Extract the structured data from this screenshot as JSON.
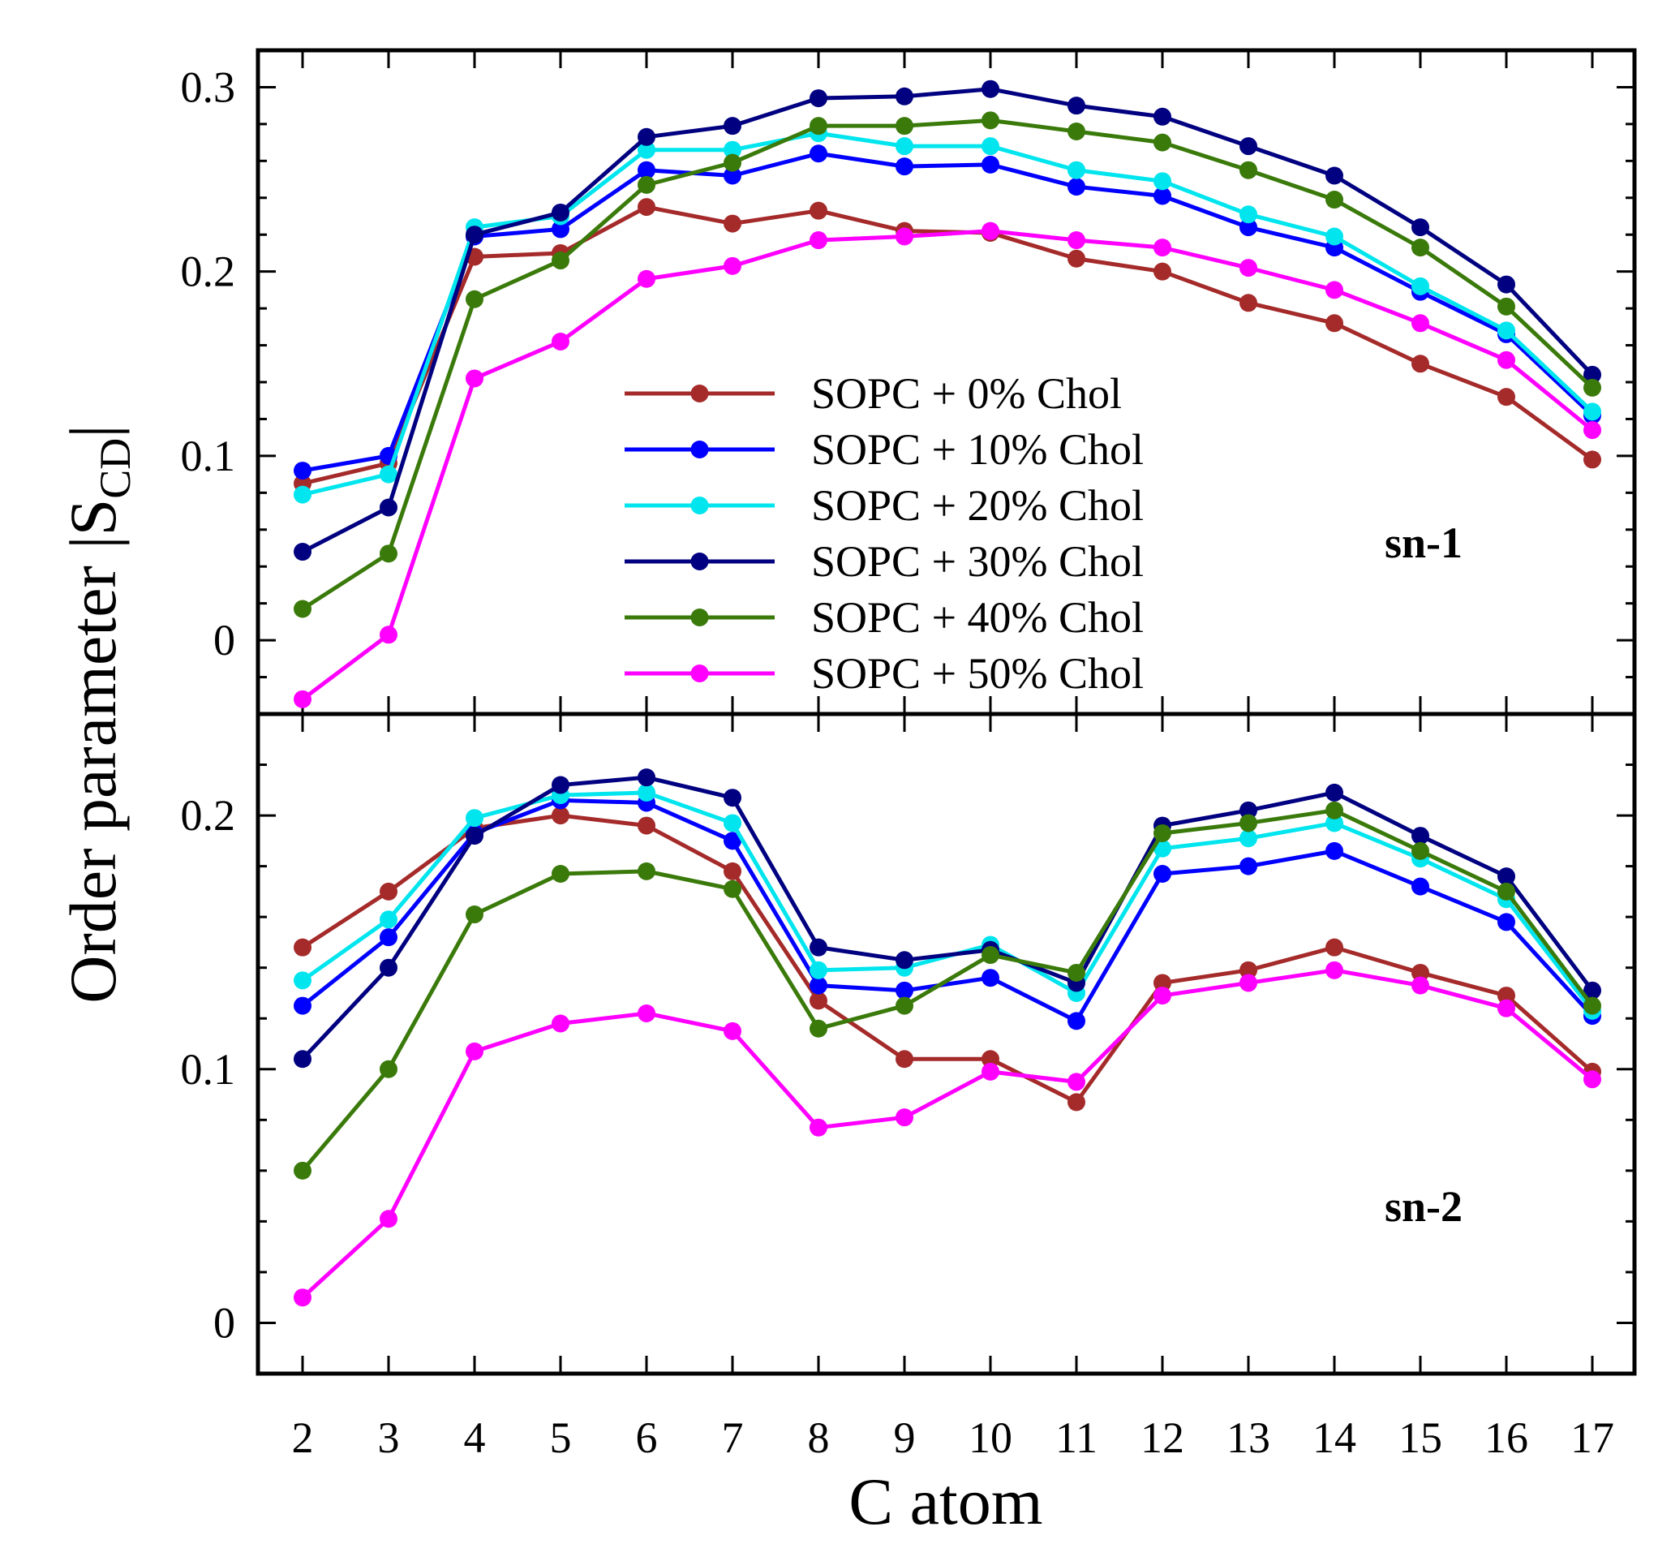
{
  "chart_data": {
    "type": "line",
    "x_categories": [
      2,
      3,
      4,
      5,
      6,
      7,
      8,
      9,
      10,
      11,
      12,
      13,
      14,
      15,
      16,
      17
    ],
    "xlabel": "C atom",
    "ylabel_main": "Order parameter |S",
    "ylabel_sub": "CD",
    "ylabel_close": "|",
    "legend_position": "center",
    "series": [
      {
        "name": "SOPC + 0% Chol",
        "color": "#a52a2a"
      },
      {
        "name": "SOPC + 10% Chol",
        "color": "#0000ff"
      },
      {
        "name": "SOPC + 20% Chol",
        "color": "#00e5ee"
      },
      {
        "name": "SOPC + 30% Chol",
        "color": "#000080"
      },
      {
        "name": "SOPC + 40% Chol",
        "color": "#3a7a0a"
      },
      {
        "name": "SOPC + 50% Chol",
        "color": "#ff00ff"
      }
    ],
    "panels": [
      {
        "label": "sn-1",
        "ylim": [
          -0.04,
          0.32
        ],
        "yticks": [
          0,
          0.1,
          0.2,
          0.3
        ],
        "ytick_labels": [
          "0",
          "0.1",
          "0.2",
          "0.3"
        ],
        "values": [
          [
            0.085,
            0.096,
            0.208,
            0.21,
            0.235,
            0.226,
            0.233,
            0.222,
            0.221,
            0.207,
            0.2,
            0.183,
            0.172,
            0.15,
            0.132,
            0.098
          ],
          [
            0.092,
            0.1,
            0.219,
            0.223,
            0.255,
            0.252,
            0.264,
            0.257,
            0.258,
            0.246,
            0.241,
            0.224,
            0.213,
            0.189,
            0.166,
            0.122
          ],
          [
            0.079,
            0.09,
            0.224,
            0.23,
            0.266,
            0.266,
            0.275,
            0.268,
            0.268,
            0.255,
            0.249,
            0.231,
            0.219,
            0.192,
            0.168,
            0.124
          ],
          [
            0.048,
            0.072,
            0.22,
            0.232,
            0.273,
            0.279,
            0.294,
            0.295,
            0.299,
            0.29,
            0.284,
            0.268,
            0.252,
            0.224,
            0.193,
            0.144
          ],
          [
            0.017,
            0.047,
            0.185,
            0.206,
            0.247,
            0.259,
            0.279,
            0.279,
            0.282,
            0.276,
            0.27,
            0.255,
            0.239,
            0.213,
            0.181,
            0.137
          ],
          [
            -0.032,
            0.003,
            0.142,
            0.162,
            0.196,
            0.203,
            0.217,
            0.219,
            0.222,
            0.217,
            0.213,
            0.202,
            0.19,
            0.172,
            0.152,
            0.114
          ]
        ]
      },
      {
        "label": "sn-2",
        "ylim": [
          -0.02,
          0.24
        ],
        "yticks": [
          0,
          0.1,
          0.2
        ],
        "ytick_labels": [
          "0",
          "0.1",
          "0.2"
        ],
        "values": [
          [
            0.148,
            0.17,
            0.195,
            0.2,
            0.196,
            0.178,
            0.127,
            0.104,
            0.104,
            0.087,
            0.134,
            0.139,
            0.148,
            0.138,
            0.129,
            0.099
          ],
          [
            0.125,
            0.152,
            0.193,
            0.206,
            0.205,
            0.19,
            0.133,
            0.131,
            0.136,
            0.119,
            0.177,
            0.18,
            0.186,
            0.172,
            0.158,
            0.121
          ],
          [
            0.135,
            0.159,
            0.199,
            0.208,
            0.209,
            0.197,
            0.139,
            0.14,
            0.149,
            0.13,
            0.187,
            0.191,
            0.197,
            0.183,
            0.167,
            0.123
          ],
          [
            0.104,
            0.14,
            0.192,
            0.212,
            0.215,
            0.207,
            0.148,
            0.143,
            0.147,
            0.134,
            0.196,
            0.202,
            0.209,
            0.192,
            0.176,
            0.131
          ],
          [
            0.06,
            0.1,
            0.161,
            0.177,
            0.178,
            0.171,
            0.116,
            0.125,
            0.145,
            0.138,
            0.193,
            0.197,
            0.202,
            0.186,
            0.17,
            0.125
          ],
          [
            0.01,
            0.041,
            0.107,
            0.118,
            0.122,
            0.115,
            0.077,
            0.081,
            0.099,
            0.095,
            0.129,
            0.134,
            0.139,
            0.133,
            0.124,
            0.096
          ]
        ]
      }
    ]
  }
}
